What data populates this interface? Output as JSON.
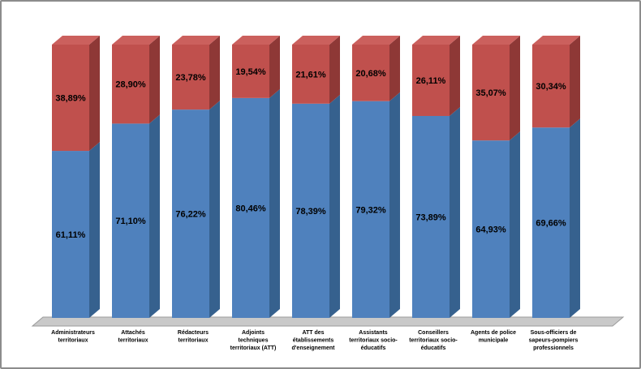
{
  "chart": {
    "title": "",
    "colors": {
      "blue_front": "#4f81bd",
      "blue_side": "#36618e",
      "red_front": "#c0504d",
      "red_side": "#8e3836",
      "red_top": "#cb605d",
      "floor_fill": "#c9c9c9",
      "floor_edge": "#9a9a9a",
      "label_color": "#000000",
      "border": "#8c8c8c"
    }
  },
  "chart_data": {
    "type": "bar",
    "subtype": "3d-stacked-100-percent",
    "legend": "none",
    "grid": false,
    "ylim": [
      0,
      100
    ],
    "value_format": "percent-comma-decimal",
    "categories": [
      "Administrateurs territoriaux",
      "Attachés territoriaux",
      "Rédacteurs territoriaux",
      "Adjoints techniques territoriaux (ATT)",
      "ATT des établissements d'enseignement",
      "Assistants territoriaux socio-éducatifs",
      "Conseillers territoriaux socio-éducatifs",
      "Agents de police municipale",
      "Sous-officiers de sapeurs-pompiers professionnels"
    ],
    "category_lines": [
      [
        "Administrateurs",
        "territoriaux"
      ],
      [
        "Attachés",
        "territoriaux"
      ],
      [
        "Rédacteurs",
        "territoriaux"
      ],
      [
        "Adjoints",
        "techniques",
        "territoriaux (ATT)"
      ],
      [
        "ATT des",
        "établissements",
        "d'enseignement"
      ],
      [
        "Assistants",
        "territoriaux socio-",
        "éducatifs"
      ],
      [
        "Conseillers",
        "territoriaux socio-",
        "éducatifs"
      ],
      [
        "Agents de police",
        "municipale"
      ],
      [
        "Sous-officiers de",
        "sapeurs-pompiers",
        "professionnels"
      ]
    ],
    "series": [
      {
        "id": "bottom-blue",
        "position": "bottom",
        "color": "#4f81bd",
        "values": [
          61.11,
          71.1,
          76.22,
          80.46,
          78.39,
          79.32,
          73.89,
          64.93,
          69.66
        ],
        "labels": [
          "61,11%",
          "71,10%",
          "76,22%",
          "80,46%",
          "78,39%",
          "79,32%",
          "73,89%",
          "64,93%",
          "69,66%"
        ]
      },
      {
        "id": "top-red",
        "position": "top",
        "color": "#c0504d",
        "values": [
          38.89,
          28.9,
          23.78,
          19.54,
          21.61,
          20.68,
          26.11,
          35.07,
          30.34
        ],
        "labels": [
          "38,89%",
          "28,90%",
          "23,78%",
          "19,54%",
          "21,61%",
          "20,68%",
          "26,11%",
          "35,07%",
          "30,34%"
        ]
      }
    ]
  }
}
